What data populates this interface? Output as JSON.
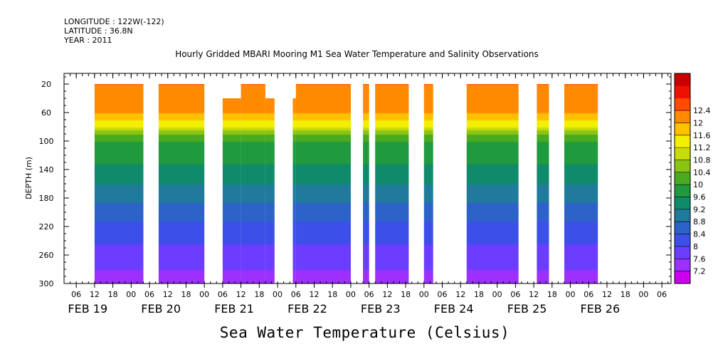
{
  "header": {
    "longitude": "LONGITUDE : 122W(-122)",
    "latitude": "LATITUDE : 36.8N",
    "year": "YEAR : 2011"
  },
  "chart_data": {
    "type": "heatmap",
    "title": "Hourly Gridded MBARI Mooring M1 Sea Water Temperature and Salinity Observations",
    "xlabel": "Sea Water Temperature (Celsius)",
    "ylabel": "DEPTH (m)",
    "x_time_hours_since": "FEB 19 00",
    "xlim_hours": [
      2,
      201
    ],
    "ylim": [
      300,
      5
    ],
    "y_ticks": [
      20,
      60,
      100,
      140,
      180,
      220,
      260,
      300
    ],
    "x_hour_tick_labels": [
      "06",
      "12",
      "18",
      "00",
      "06",
      "12",
      "18",
      "00",
      "06",
      "12",
      "18",
      "00",
      "06",
      "12",
      "18",
      "00",
      "06",
      "12",
      "18",
      "00",
      "06",
      "12",
      "18",
      "00",
      "06",
      "12",
      "18",
      "00",
      "06",
      "12",
      "18",
      "00",
      "06"
    ],
    "x_day_labels": [
      "FEB 19",
      "FEB 20",
      "FEB 21",
      "FEB 22",
      "FEB 23",
      "FEB 24",
      "FEB 25",
      "FEB 26"
    ],
    "colorbar": {
      "levels": [
        7.2,
        7.6,
        8,
        8.4,
        8.8,
        9.2,
        9.6,
        10,
        10.4,
        10.8,
        11.2,
        11.6,
        12,
        12.4
      ],
      "colors": [
        "#cc00ee",
        "#9b30ff",
        "#6a3dff",
        "#3c4fe8",
        "#2d62c8",
        "#1f7a9c",
        "#0f8a6a",
        "#1f9a3e",
        "#4aab1e",
        "#8cc414",
        "#c8dc0a",
        "#f2f000",
        "#ffc000",
        "#ff8a00",
        "#ff4a00",
        "#ee1000",
        "#c80000"
      ],
      "labels": [
        "7.2",
        "7.6",
        "8",
        "8.4",
        "8.8",
        "9.2",
        "9.6",
        "10",
        "10.4",
        "10.8",
        "11.2",
        "11.6",
        "12",
        "12.4"
      ]
    },
    "data_segments_hours": [
      {
        "start": 12,
        "end": 28,
        "top_depth": 20
      },
      {
        "start": 33,
        "end": 48,
        "top_depth": 20
      },
      {
        "start": 54,
        "end": 60,
        "top_depth": 40
      },
      {
        "start": 60,
        "end": 68,
        "top_depth": 20
      },
      {
        "start": 68,
        "end": 71,
        "top_depth": 40
      },
      {
        "start": 77,
        "end": 78,
        "top_depth": 40
      },
      {
        "start": 78,
        "end": 96,
        "top_depth": 20
      },
      {
        "start": 100,
        "end": 102,
        "top_depth": 20
      },
      {
        "start": 104,
        "end": 115,
        "top_depth": 20
      },
      {
        "start": 120,
        "end": 123,
        "top_depth": 20
      },
      {
        "start": 134,
        "end": 151,
        "top_depth": 20
      },
      {
        "start": 157,
        "end": 161,
        "top_depth": 20
      },
      {
        "start": 166,
        "end": 177,
        "top_depth": 20
      }
    ],
    "temperature_profile": [
      {
        "depth": 20,
        "temp": 12.4
      },
      {
        "depth": 60,
        "temp": 12.0
      },
      {
        "depth": 80,
        "temp": 11.3
      },
      {
        "depth": 90,
        "temp": 10.4
      },
      {
        "depth": 100,
        "temp": 10.0
      },
      {
        "depth": 140,
        "temp": 9.5
      },
      {
        "depth": 180,
        "temp": 8.9
      },
      {
        "depth": 220,
        "temp": 8.3
      },
      {
        "depth": 260,
        "temp": 7.8
      },
      {
        "depth": 300,
        "temp": 7.4
      }
    ]
  }
}
